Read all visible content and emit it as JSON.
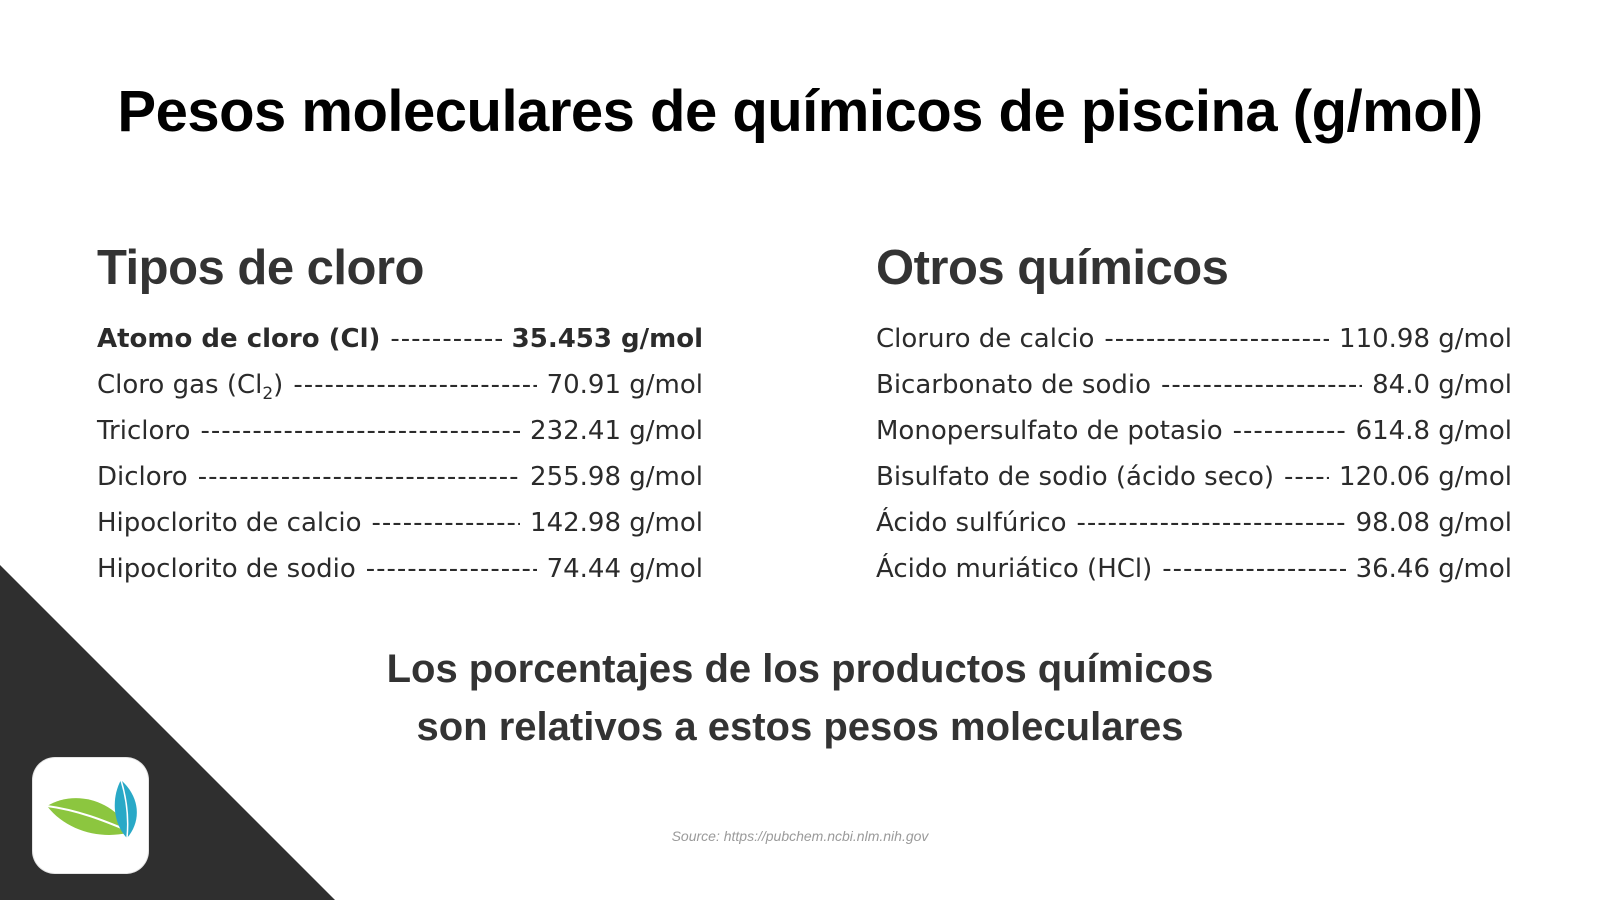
{
  "title": "Pesos moleculares de químicos de piscina (g/mol)",
  "left_column": {
    "heading": "Tipos de cloro",
    "rows": [
      {
        "name": "Atomo de cloro (Cl)",
        "value": "35.453 g/mol",
        "bold": true
      },
      {
        "name_prefix": "Cloro gas (Cl",
        "name_sub": "2",
        "name_suffix": ")",
        "value": "70.91 g/mol"
      },
      {
        "name": "Tricloro",
        "value": "232.41 g/mol"
      },
      {
        "name": "Dicloro",
        "value": "255.98 g/mol"
      },
      {
        "name": "Hipoclorito de calcio",
        "value": "142.98 g/mol"
      },
      {
        "name": "Hipoclorito de sodio",
        "value": "74.44 g/mol"
      }
    ]
  },
  "right_column": {
    "heading": "Otros químicos",
    "rows": [
      {
        "name": "Cloruro de calcio",
        "value": "110.98 g/mol"
      },
      {
        "name": "Bicarbonato de sodio",
        "value": "84.0 g/mol"
      },
      {
        "name": "Monopersulfato de potasio",
        "value": "614.8 g/mol"
      },
      {
        "name": "Bisulfato de sodio (ácido seco)",
        "value": "120.06 g/mol"
      },
      {
        "name": "Ácido sulfúrico",
        "value": "98.08 g/mol"
      },
      {
        "name": "Ácido muriático (HCl)",
        "value": "36.46 g/mol"
      }
    ]
  },
  "footer_note": {
    "line1": "Los porcentajes de los productos químicos",
    "line2": "son relativos a estos pesos moleculares"
  },
  "source": "Source: https://pubchem.ncbi.nlm.nih.gov",
  "logo": {
    "icon": "leaf-logo-icon",
    "colors": [
      "#8cc63f",
      "#29a9c7"
    ]
  },
  "colors": {
    "corner": "#2f2f2f",
    "text": "#333333",
    "title": "#000000"
  }
}
